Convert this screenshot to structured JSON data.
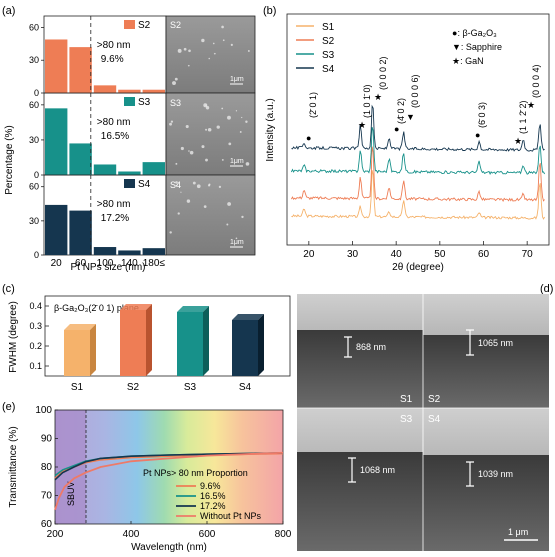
{
  "panel_labels": {
    "a": "(a)",
    "b": "(b)",
    "c": "(c)",
    "d": "(d)",
    "e": "(e)"
  },
  "panel_a": {
    "ylabel": "Percentage (%)",
    "xlabel": "Pt NPs size (nm)",
    "xticks": [
      "20",
      "60",
      "100",
      "140",
      "180≤"
    ],
    "yticks_top": [
      "0",
      "30",
      "60"
    ],
    "yticks_mid": [
      "0",
      "30",
      "60"
    ],
    "yticks_bot": [
      "0",
      "30",
      "60"
    ],
    "sample_gt": ">80 nm",
    "sem_scale": "1μm"
  },
  "panel_b": {
    "ylabel": "Intensity (a.u.)",
    "xlabel": "2θ (degree)",
    "xticks": [
      "20",
      "30",
      "40",
      "50",
      "60",
      "70"
    ],
    "legend_markers": [
      {
        "symbol": "●",
        "label": ": β-Ga₂O₃"
      },
      {
        "symbol": "▼",
        "label": ": Sapphire"
      },
      {
        "symbol": "★",
        "label": ": GaN"
      }
    ],
    "peak_labels": [
      "(2̄ 0 1)",
      "(1 0 1̄ 0)",
      "(0 0 0 2)",
      "(4̄ 0 2)",
      "(0 0 0 6)",
      "(6̄ 0 3)",
      "(1 1 2̄ 2)",
      "(0 0 0 4)"
    ]
  },
  "panel_c": {
    "title": "β-Ga₂O₃(2̄ 0 1) plane",
    "ylabel": "FWHM (degree)",
    "yticks": [
      "0.1",
      "0.2",
      "0.3",
      "0.4"
    ]
  },
  "panel_d": {
    "thickness": [
      "868 nm",
      "1065 nm",
      "1068 nm",
      "1039 nm"
    ],
    "scale": "1 μm"
  },
  "panel_e": {
    "ylabel": "Transmittance (%)",
    "xlabel": "Wavelength (nm)",
    "xticks": [
      "200",
      "400",
      "600",
      "800"
    ],
    "yticks": [
      "60",
      "70",
      "80",
      "90",
      "100"
    ],
    "region_label": "SBUV",
    "legend_title": "Pt NPs> 80 nm Proportion",
    "legend_entries": [
      "9.6%",
      "16.5%",
      "17.2%",
      "Without Pt NPs"
    ]
  },
  "colors": {
    "S1": "#f5b26b",
    "S2": "#ee7d55",
    "S3": "#17918a",
    "S4": "#15364f"
  },
  "chart_data": [
    {
      "type": "bar",
      "panel": "a",
      "ylabel": "Percentage (%)",
      "xlabel": "Pt NPs size (nm)",
      "categories": [
        "20",
        "60",
        "100",
        "140",
        "180≤"
      ],
      "ylim": [
        0,
        65
      ],
      "series": [
        {
          "name": "S2",
          "values": [
            49,
            42,
            7,
            3,
            3
          ],
          "annotation": "9.6%"
        },
        {
          "name": "S3",
          "values": [
            57,
            27,
            9,
            3,
            11
          ],
          "annotation": "16.5%"
        },
        {
          "name": "S4",
          "values": [
            44,
            39,
            7,
            4,
            6
          ],
          "annotation": "17.2%"
        }
      ]
    },
    {
      "type": "line",
      "panel": "b",
      "xlabel": "2θ (degree)",
      "ylabel": "Intensity (a.u.)",
      "xlim": [
        15,
        75
      ],
      "series": [
        {
          "name": "S1",
          "peaks": [
            [
              18.9,
              0.15
            ],
            [
              31.8,
              0.2
            ],
            [
              34.6,
              1.0
            ],
            [
              38.4,
              0.1
            ],
            [
              41.7,
              0.35
            ],
            [
              59.0,
              0.1
            ],
            [
              72.9,
              0.75
            ]
          ]
        },
        {
          "name": "S2",
          "peaks": [
            [
              18.9,
              0.15
            ],
            [
              31.8,
              0.4
            ],
            [
              34.6,
              1.0
            ],
            [
              38.4,
              0.2
            ],
            [
              41.7,
              0.35
            ],
            [
              59.0,
              0.15
            ],
            [
              69.1,
              0.1
            ],
            [
              72.9,
              0.7
            ]
          ]
        },
        {
          "name": "S3",
          "peaks": [
            [
              18.9,
              0.1
            ],
            [
              31.8,
              0.4
            ],
            [
              34.6,
              0.9
            ],
            [
              38.4,
              0.25
            ],
            [
              41.7,
              0.35
            ],
            [
              59.0,
              0.2
            ],
            [
              69.1,
              0.15
            ],
            [
              72.9,
              0.55
            ]
          ]
        },
        {
          "name": "S4",
          "peaks": [
            [
              18.9,
              0.1
            ],
            [
              31.8,
              0.45
            ],
            [
              34.6,
              0.85
            ],
            [
              38.4,
              0.2
            ],
            [
              41.7,
              0.3
            ],
            [
              59.0,
              0.15
            ],
            [
              69.1,
              0.2
            ],
            [
              72.9,
              0.5
            ]
          ]
        }
      ]
    },
    {
      "type": "bar",
      "panel": "c",
      "ylabel": "FWHM (degree)",
      "categories": [
        "S1",
        "S2",
        "S3",
        "S4"
      ],
      "values": [
        0.28,
        0.38,
        0.37,
        0.33
      ],
      "ylim": [
        0.1,
        0.45
      ]
    },
    {
      "type": "line",
      "panel": "e",
      "xlabel": "Wavelength (nm)",
      "ylabel": "Transmittance (%)",
      "xlim": [
        200,
        800
      ],
      "ylim": [
        60,
        100
      ],
      "series": [
        {
          "name": "9.6%",
          "x": [
            200,
            220,
            250,
            280,
            320,
            400,
            500,
            600,
            700,
            800
          ],
          "y": [
            76,
            78.5,
            80,
            81.5,
            82.5,
            83.3,
            83.8,
            84.2,
            84.5,
            84.7
          ]
        },
        {
          "name": "16.5%",
          "x": [
            200,
            220,
            250,
            280,
            320,
            400,
            500,
            600,
            700,
            800
          ],
          "y": [
            77,
            79,
            80.5,
            82,
            83,
            83.8,
            84.2,
            84.5,
            84.7,
            84.9
          ]
        },
        {
          "name": "17.2%",
          "x": [
            200,
            220,
            250,
            280,
            320,
            400,
            500,
            600,
            700,
            800
          ],
          "y": [
            75.5,
            78,
            80,
            81.8,
            83,
            83.8,
            84.2,
            84.5,
            84.7,
            84.9
          ]
        },
        {
          "name": "Without Pt NPs",
          "x": [
            200,
            210,
            225,
            250,
            280,
            320,
            400,
            500,
            600,
            700,
            800
          ],
          "y": [
            65,
            69,
            73,
            76,
            78,
            80,
            82,
            83,
            84,
            84.5,
            85
          ]
        }
      ]
    }
  ]
}
